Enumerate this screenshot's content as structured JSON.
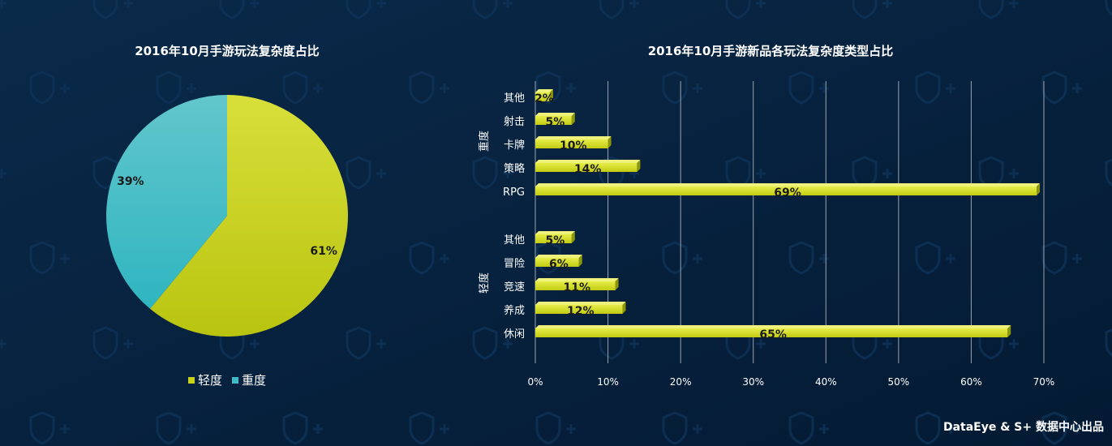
{
  "colors": {
    "background": "#06213d",
    "light": "#c8d21a",
    "heavy": "#3bbcc6",
    "grid": "#9aa3ad"
  },
  "footer": "DataEye & S+ 数据中心出品",
  "chart_data": [
    {
      "type": "pie",
      "title": "2016年10月手游玩法复杂度占比",
      "labels": [
        "轻度",
        "重度"
      ],
      "values": [
        61,
        39
      ],
      "value_labels": [
        "61%",
        "39%"
      ],
      "legend": [
        "轻度",
        "重度"
      ],
      "legend_position": "bottom"
    },
    {
      "type": "bar",
      "orientation": "horizontal",
      "title": "2016年10月手游新品各玩法复杂度类型占比",
      "groups": [
        {
          "name": "重度",
          "categories": [
            "其他",
            "射击",
            "卡牌",
            "策略",
            "RPG"
          ],
          "values": [
            2,
            5,
            10,
            14,
            69
          ],
          "value_labels": [
            "2%",
            "5%",
            "10%",
            "14%",
            "69%"
          ]
        },
        {
          "name": "轻度",
          "categories": [
            "其他",
            "冒险",
            "竞速",
            "养成",
            "休闲"
          ],
          "values": [
            5,
            6,
            11,
            12,
            65
          ],
          "value_labels": [
            "5%",
            "6%",
            "11%",
            "12%",
            "65%"
          ]
        }
      ],
      "x_ticks": [
        "0%",
        "10%",
        "20%",
        "30%",
        "40%",
        "50%",
        "60%",
        "70%"
      ],
      "xlim": [
        0,
        70
      ],
      "grid": true
    }
  ]
}
